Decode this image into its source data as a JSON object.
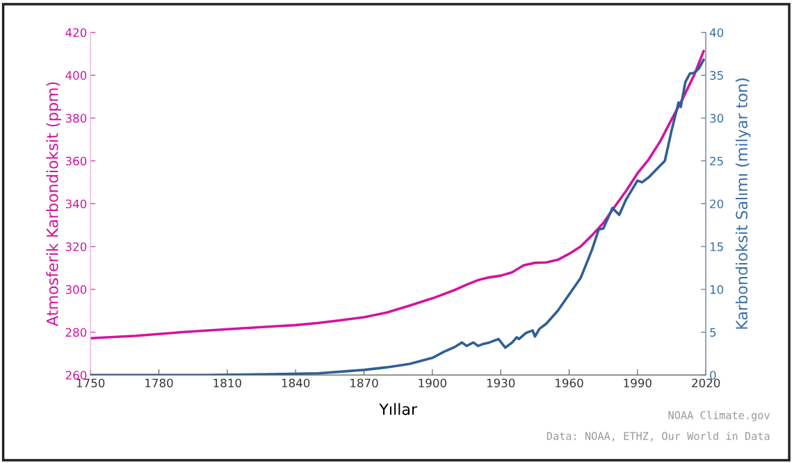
{
  "chart_data": {
    "type": "line",
    "xlabel": "Yıllar",
    "ylabel": "Atmosferik Karbondioksit (ppm)",
    "y2label": "Karbondioksit Salımı (milyar ton)",
    "xlim": [
      1750,
      2020
    ],
    "xticks": [
      1750,
      1780,
      1810,
      1840,
      1870,
      1900,
      1930,
      1960,
      1990,
      2020
    ],
    "ylim": [
      260,
      420
    ],
    "yticks": [
      260,
      280,
      300,
      320,
      340,
      360,
      380,
      400,
      420
    ],
    "y2lim": [
      0,
      40
    ],
    "y2ticks": [
      0,
      5,
      10,
      15,
      20,
      25,
      30,
      35,
      40
    ],
    "grid": false,
    "marker": "none",
    "line_style": "solid",
    "annotations": [
      "NOAA Climate.gov",
      "Data: NOAA, ETHZ, Our World in Data"
    ],
    "series": [
      {
        "color": "#d4139e",
        "x": [
          1750,
          1770,
          1790,
          1810,
          1830,
          1840,
          1850,
          1860,
          1870,
          1880,
          1890,
          1900,
          1910,
          1915,
          1920,
          1925,
          1930,
          1935,
          1940,
          1945,
          1950,
          1955,
          1960,
          1965,
          1970,
          1975,
          1980,
          1985,
          1990,
          1995,
          2000,
          2005,
          2010,
          2015,
          2019
        ],
        "values": [
          277.2,
          278.3,
          280.0,
          281.4,
          282.7,
          283.3,
          284.3,
          285.6,
          287.0,
          289.2,
          292.4,
          295.8,
          299.8,
          302.2,
          304.3,
          305.6,
          306.4,
          308.0,
          311.2,
          312.4,
          312.6,
          313.8,
          316.6,
          320.0,
          325.2,
          331.0,
          338.6,
          346.0,
          354.2,
          360.8,
          369.2,
          379.4,
          389.4,
          400.4,
          411.2
        ]
      },
      {
        "color": "#2e5f96",
        "axis": "y2",
        "x": [
          1750,
          1800,
          1830,
          1850,
          1860,
          1870,
          1880,
          1890,
          1900,
          1905,
          1910,
          1913,
          1915,
          1918,
          1920,
          1922,
          1925,
          1929,
          1932,
          1935,
          1937,
          1938,
          1941,
          1944,
          1945,
          1947,
          1950,
          1955,
          1960,
          1965,
          1970,
          1973,
          1975,
          1979,
          1982,
          1985,
          1990,
          1992,
          1995,
          1999,
          2002,
          2005,
          2008,
          2009,
          2011,
          2013,
          2015,
          2017,
          2019
        ],
        "values": [
          0.0,
          0.0,
          0.1,
          0.2,
          0.4,
          0.6,
          0.9,
          1.3,
          2.0,
          2.7,
          3.3,
          3.8,
          3.4,
          3.8,
          3.4,
          3.6,
          3.8,
          4.2,
          3.2,
          3.8,
          4.4,
          4.2,
          4.9,
          5.2,
          4.5,
          5.4,
          6.0,
          7.5,
          9.4,
          11.3,
          14.6,
          17.0,
          17.1,
          19.5,
          18.7,
          20.5,
          22.7,
          22.5,
          23.1,
          24.2,
          25.0,
          28.6,
          31.8,
          31.3,
          34.2,
          35.2,
          35.3,
          35.8,
          36.8
        ]
      }
    ]
  }
}
